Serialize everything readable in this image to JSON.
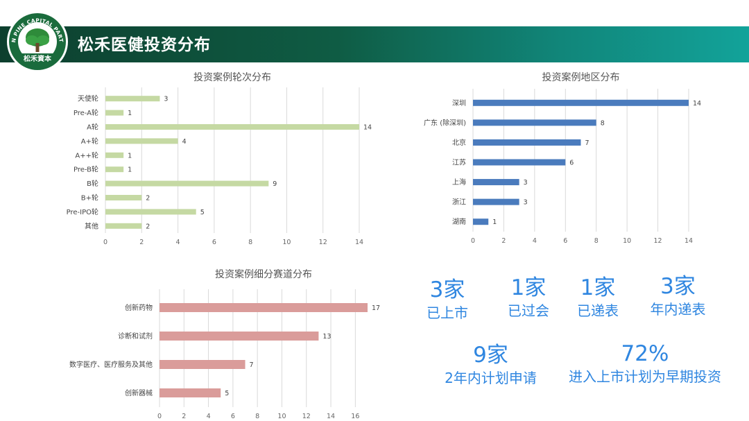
{
  "header": {
    "title": "松禾医健投资分布",
    "logo_arc_text": "GREEN PINE CAPITAL PARTNERS",
    "logo_bottom_text": "松禾資本",
    "brand_color": "#0f5c44"
  },
  "chart_data": [
    {
      "type": "bar",
      "orientation": "horizontal",
      "title": "投资案例轮次分布",
      "categories": [
        "天使轮",
        "Pre-A轮",
        "A轮",
        "A+轮",
        "A++轮",
        "Pre-B轮",
        "B轮",
        "B+轮",
        "Pre-IPO轮",
        "其他"
      ],
      "values": [
        3,
        1,
        14,
        4,
        1,
        1,
        9,
        2,
        5,
        2
      ],
      "xlim": [
        0,
        14
      ],
      "xticks": [
        0,
        2,
        4,
        6,
        8,
        10,
        12,
        14
      ],
      "grid": true,
      "color": "#c5d9a3"
    },
    {
      "type": "bar",
      "orientation": "horizontal",
      "title": "投资案例地区分布",
      "categories": [
        "深圳",
        "广东 (除深圳)",
        "北京",
        "江苏",
        "上海",
        "浙江",
        "湖南"
      ],
      "values": [
        14,
        8,
        7,
        6,
        3,
        3,
        1
      ],
      "xlim": [
        0,
        14
      ],
      "xticks": [
        0,
        2,
        4,
        6,
        8,
        10,
        12,
        14
      ],
      "grid": true,
      "color": "#4a7bbd"
    },
    {
      "type": "bar",
      "orientation": "horizontal",
      "title": "投资案例细分赛道分布",
      "categories": [
        "创新药物",
        "诊断和试剂",
        "数字医疗、医疗服务及其他",
        "创新器械"
      ],
      "values": [
        17,
        13,
        7,
        5
      ],
      "xlim": [
        0,
        17
      ],
      "xticks": [
        0,
        2,
        4,
        6,
        8,
        10,
        12,
        14,
        16
      ],
      "grid": true,
      "color": "#da9c9a"
    }
  ],
  "stats": [
    {
      "number": "3家",
      "label": "已上市"
    },
    {
      "number": "1家",
      "label": "已过会"
    },
    {
      "number": "1家",
      "label": "已递表"
    },
    {
      "number": "3家",
      "label": "年内递表"
    },
    {
      "number": "9家",
      "label": "2年内计划申请"
    },
    {
      "number": "72%",
      "label": "进入上市计划为早期投资"
    }
  ]
}
